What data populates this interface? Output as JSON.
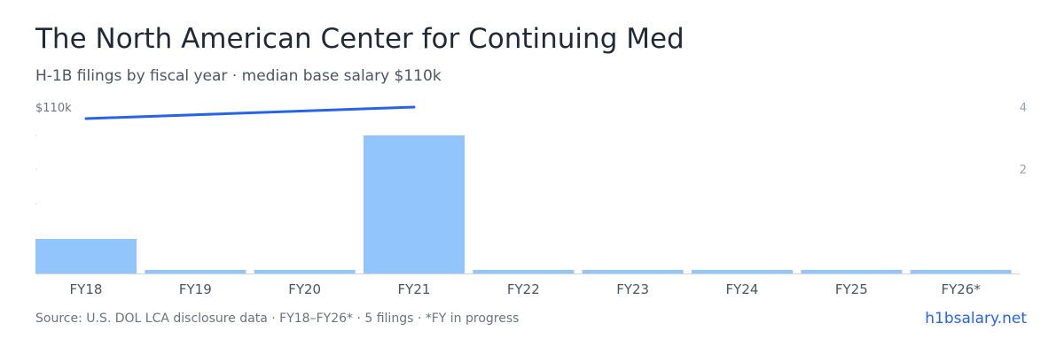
{
  "header": {
    "title": "The North American Center for Continuing Med",
    "subtitle": "H-1B filings by fiscal year · median base salary $110k"
  },
  "footer": {
    "source": "Source: U.S. DOL LCA disclosure data · FY18–FY26* · 5 filings · *FY in progress",
    "brand": "h1bsalary.net"
  },
  "colors": {
    "bar": "#93c5fd",
    "line": "#2563eb",
    "baseline": "#d1d5db"
  },
  "chart_data": {
    "type": "bar",
    "categories": [
      "FY18",
      "FY19",
      "FY20",
      "FY21",
      "FY22",
      "FY23",
      "FY24",
      "FY25",
      "FY26*"
    ],
    "series": [
      {
        "values": [
          1,
          0,
          0,
          4,
          0,
          0,
          0,
          0,
          0
        ]
      }
    ],
    "salary_line": {
      "x": [
        "FY18",
        "FY21"
      ],
      "values": [
        110000,
        110000
      ]
    },
    "left_axis_label": "$110k",
    "right_ticks": [
      4,
      2
    ],
    "ylim": [
      0,
      4
    ],
    "grid": false,
    "legend": "none"
  }
}
